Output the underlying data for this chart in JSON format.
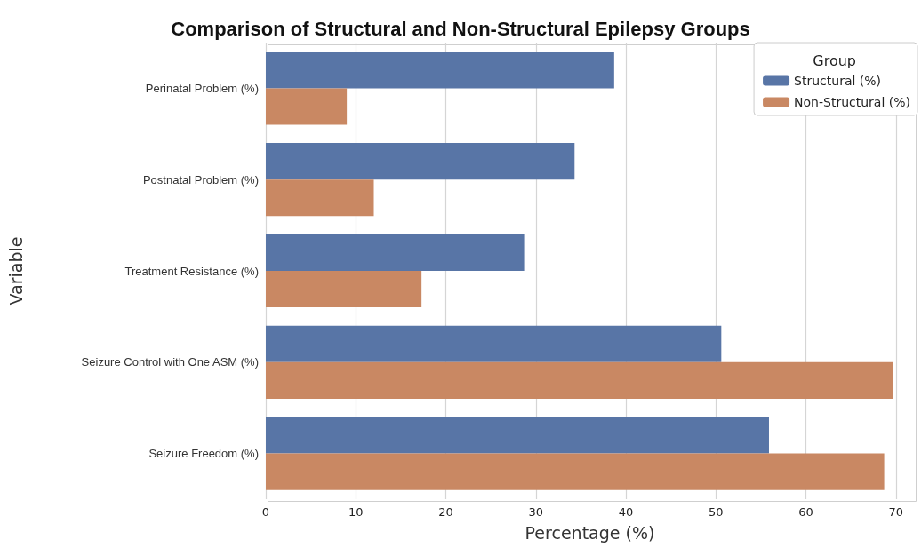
{
  "chart_data": {
    "type": "bar",
    "orientation": "horizontal",
    "title": "Comparison of Structural and Non-Structural Epilepsy Groups",
    "xlabel": "Percentage (%)",
    "ylabel": "Variable",
    "legend_title": "Group",
    "categories": [
      "Perinatal Problem (%)",
      "Postnatal Problem (%)",
      "Treatment Resistance (%)",
      "Seizure Control with One ASM (%)",
      "Seizure Freedom (%)"
    ],
    "series": [
      {
        "name": "Structural (%)",
        "color": "#5875a6",
        "values": [
          38.7,
          34.3,
          28.7,
          50.6,
          55.9
        ]
      },
      {
        "name": "Non-Structural (%)",
        "color": "#c98863",
        "values": [
          9.0,
          12.0,
          17.3,
          69.7,
          68.7
        ]
      }
    ],
    "xlim": [
      0,
      72
    ],
    "xticks": [
      0,
      10,
      20,
      30,
      40,
      50,
      60,
      70
    ],
    "grid": "x",
    "legend": "top right"
  }
}
